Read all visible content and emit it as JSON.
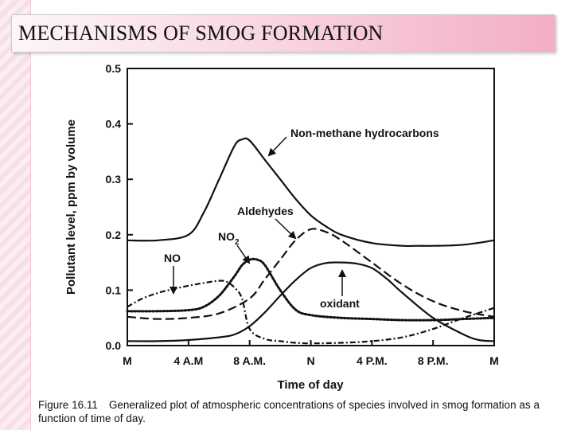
{
  "slide": {
    "title": "MECHANISMS OF SMOG FORMATION",
    "caption_label": "Figure 16.11",
    "caption_text": "Generalized plot of atmospheric concentrations of species involved in smog formation as a function of time of day."
  },
  "chart_data": {
    "type": "line",
    "title": "",
    "xlabel": "Time of day",
    "ylabel": "Pollutant level, ppm by volume",
    "xlim": [
      0,
      24
    ],
    "ylim": [
      0,
      0.5
    ],
    "x_ticks": [
      0,
      4,
      8,
      12,
      16,
      20,
      24
    ],
    "x_tick_labels": [
      "M",
      "4 A.M",
      "8 A.M.",
      "N",
      "4 P.M.",
      "8 P.M.",
      "M"
    ],
    "y_ticks": [
      0.0,
      0.1,
      0.2,
      0.3,
      0.4,
      0.5
    ],
    "y_tick_labels": [
      "0.0",
      "0.1",
      "0.2",
      "0.3",
      "0.4",
      "0.5"
    ],
    "grid": false,
    "legend": "none",
    "series": [
      {
        "name": "Non-methane hydrocarbons",
        "style": "solid",
        "x": [
          0,
          2,
          4,
          5,
          6,
          7,
          7.5,
          8,
          9,
          10,
          11,
          12,
          13,
          14,
          16,
          18,
          19,
          20,
          22,
          24
        ],
        "y": [
          0.19,
          0.19,
          0.2,
          0.24,
          0.3,
          0.36,
          0.372,
          0.37,
          0.335,
          0.3,
          0.265,
          0.235,
          0.215,
          0.2,
          0.185,
          0.18,
          0.18,
          0.18,
          0.182,
          0.19
        ]
      },
      {
        "name": "Aldehydes",
        "style": "dashed",
        "x": [
          0,
          2,
          4,
          6,
          8,
          9,
          10,
          11,
          12,
          13,
          14,
          16,
          18,
          20,
          22,
          24
        ],
        "y": [
          0.052,
          0.048,
          0.05,
          0.058,
          0.085,
          0.12,
          0.155,
          0.19,
          0.21,
          0.205,
          0.19,
          0.15,
          0.11,
          0.08,
          0.062,
          0.052
        ]
      },
      {
        "name": "NO2",
        "style": "dotted",
        "x": [
          0,
          2,
          4,
          5,
          6,
          7,
          7.5,
          8,
          8.5,
          9,
          10,
          11,
          12,
          14,
          16,
          18,
          20,
          22,
          24
        ],
        "y": [
          0.062,
          0.062,
          0.064,
          0.07,
          0.09,
          0.125,
          0.145,
          0.155,
          0.155,
          0.145,
          0.1,
          0.065,
          0.055,
          0.05,
          0.048,
          0.046,
          0.046,
          0.048,
          0.05
        ]
      },
      {
        "name": "NO",
        "style": "dash-dot",
        "x": [
          0,
          1,
          2,
          3,
          4,
          5,
          6,
          6.5,
          7,
          7.5,
          8,
          9,
          10,
          11,
          12,
          14,
          16,
          18,
          20,
          22,
          24
        ],
        "y": [
          0.07,
          0.085,
          0.095,
          0.102,
          0.108,
          0.113,
          0.117,
          0.115,
          0.105,
          0.085,
          0.03,
          0.012,
          0.008,
          0.005,
          0.004,
          0.005,
          0.008,
          0.015,
          0.03,
          0.05,
          0.068
        ]
      },
      {
        "name": "oxidant",
        "style": "solid",
        "x": [
          0,
          2,
          4,
          6,
          7,
          8,
          9,
          10,
          11,
          12,
          13,
          14,
          15,
          16,
          17,
          18,
          20,
          22,
          23,
          24
        ],
        "y": [
          0.008,
          0.008,
          0.01,
          0.015,
          0.02,
          0.035,
          0.06,
          0.09,
          0.118,
          0.14,
          0.149,
          0.15,
          0.148,
          0.14,
          0.12,
          0.095,
          0.05,
          0.02,
          0.01,
          0.008
        ]
      }
    ],
    "annotations": [
      {
        "text": "Non-methane hydrocarbons",
        "series": "Non-methane hydrocarbons"
      },
      {
        "text": "Aldehydes",
        "series": "Aldehydes"
      },
      {
        "text": "NO",
        "subscript": "2",
        "series": "NO2"
      },
      {
        "text": "NO",
        "series": "NO"
      },
      {
        "text": "oxidant",
        "series": "oxidant"
      }
    ]
  }
}
